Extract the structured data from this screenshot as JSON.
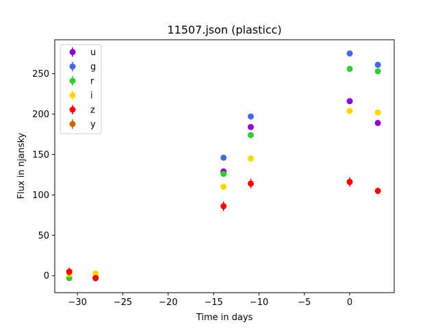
{
  "chart_data": {
    "type": "scatter",
    "title": "11507.json (plasticc)",
    "xlabel": "Time in days",
    "ylabel": "Flux in njansky",
    "xlim": [
      -32.5,
      4.9
    ],
    "ylim": [
      -21,
      292
    ],
    "xticks": [
      -30,
      -25,
      -20,
      -15,
      -10,
      -5,
      0
    ],
    "xtick_labels": [
      "−30",
      "−25",
      "−20",
      "−15",
      "−10",
      "−5",
      "0"
    ],
    "yticks": [
      0,
      50,
      100,
      150,
      200,
      250
    ],
    "ytick_labels": [
      "0",
      "50",
      "100",
      "150",
      "200",
      "250"
    ],
    "grid": false,
    "legend_position": "upper-left",
    "series": [
      {
        "name": "u",
        "color": "#9400d3",
        "points": [
          {
            "x": -28,
            "y": -3,
            "err": 2
          },
          {
            "x": -13.9,
            "y": 129,
            "err": 3
          },
          {
            "x": -10.9,
            "y": 184,
            "err": 3
          },
          {
            "x": 0,
            "y": 216,
            "err": 3
          },
          {
            "x": 3.1,
            "y": 189,
            "err": 3
          }
        ]
      },
      {
        "name": "g",
        "color": "#4169e1",
        "points": [
          {
            "x": -13.9,
            "y": 146,
            "err": 2
          },
          {
            "x": -10.9,
            "y": 197,
            "err": 2
          },
          {
            "x": 0,
            "y": 275,
            "err": 2
          },
          {
            "x": 3.1,
            "y": 261,
            "err": 2
          }
        ]
      },
      {
        "name": "r",
        "color": "#32cd32",
        "points": [
          {
            "x": -30.9,
            "y": -3,
            "err": 2
          },
          {
            "x": -28,
            "y": -2,
            "err": 2
          },
          {
            "x": -13.9,
            "y": 126,
            "err": 2
          },
          {
            "x": -10.9,
            "y": 174,
            "err": 2
          },
          {
            "x": 0,
            "y": 256,
            "err": 2
          },
          {
            "x": 3.1,
            "y": 253,
            "err": 2
          }
        ]
      },
      {
        "name": "i",
        "color": "#ffd700",
        "points": [
          {
            "x": -30.9,
            "y": 2,
            "err": 2
          },
          {
            "x": -28,
            "y": 3,
            "err": 2
          },
          {
            "x": -13.9,
            "y": 110,
            "err": 2
          },
          {
            "x": -10.9,
            "y": 145,
            "err": 2
          },
          {
            "x": 0,
            "y": 204,
            "err": 2
          },
          {
            "x": 3.1,
            "y": 202,
            "err": 2
          }
        ]
      },
      {
        "name": "z",
        "color": "#ff0000",
        "points": [
          {
            "x": -30.9,
            "y": 5,
            "err": 5
          },
          {
            "x": -28,
            "y": -3,
            "err": 4
          },
          {
            "x": -13.9,
            "y": 86,
            "err": 6
          },
          {
            "x": -10.9,
            "y": 114,
            "err": 6
          },
          {
            "x": 0,
            "y": 116,
            "err": 6
          },
          {
            "x": 3.1,
            "y": 105,
            "err": 4
          }
        ]
      },
      {
        "name": "y",
        "color": "#cc6600",
        "points": []
      }
    ]
  }
}
